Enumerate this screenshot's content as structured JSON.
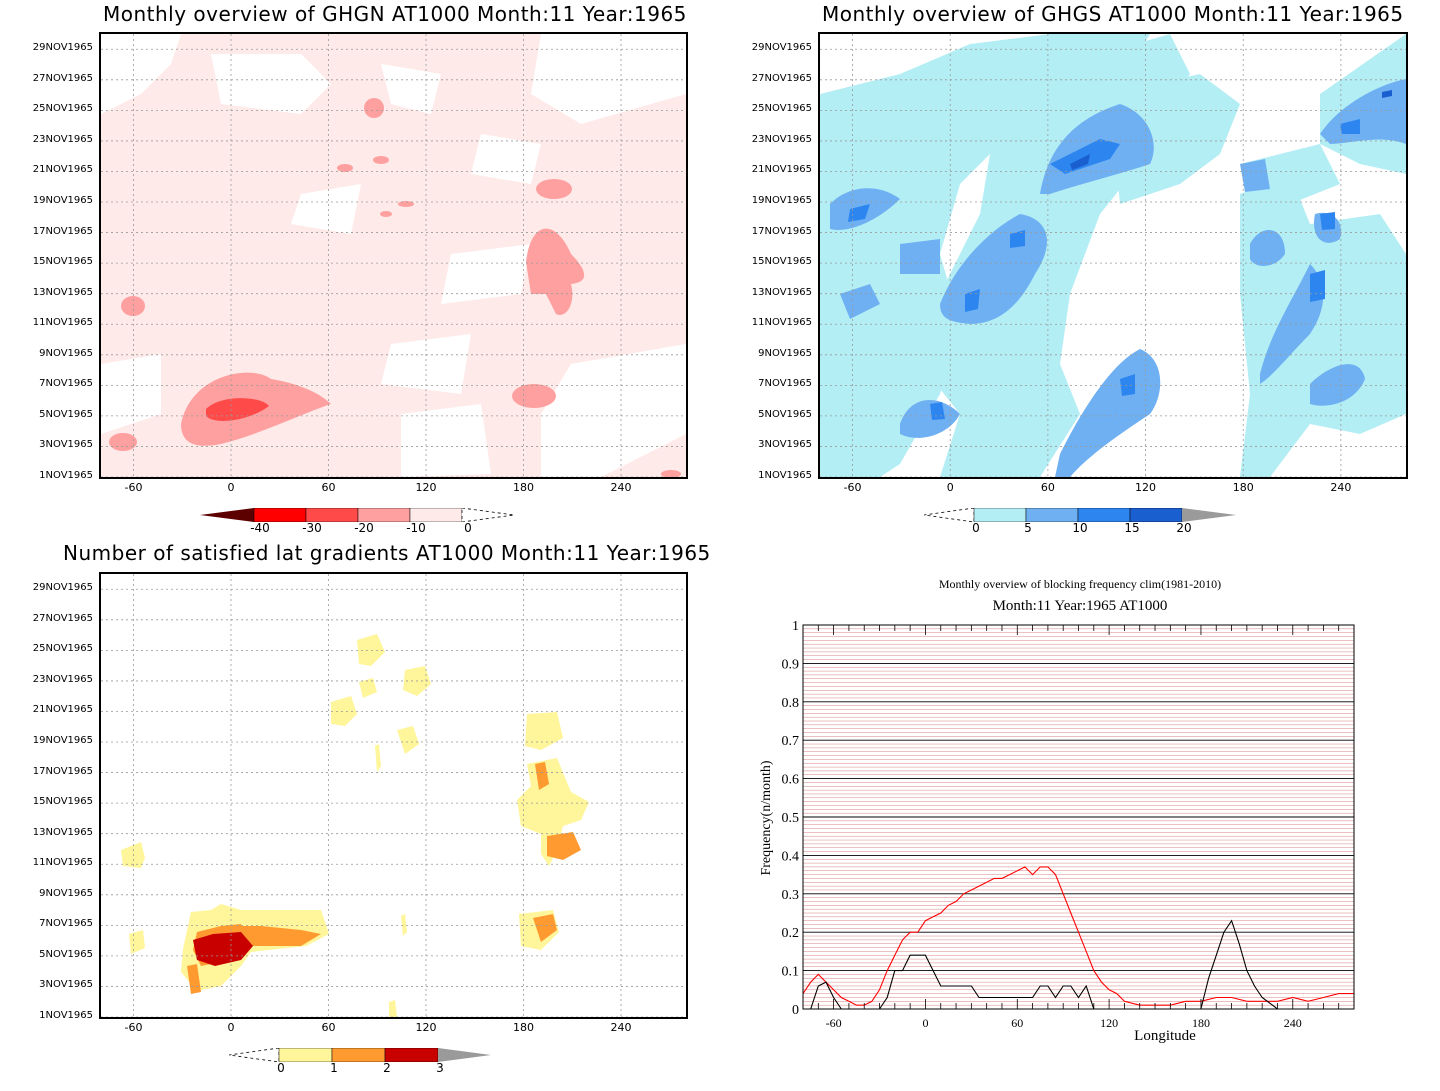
{
  "chart_data": [
    {
      "type": "heatmap",
      "title": "Monthly overview of GHGN AT1000 Month:11 Year:1965",
      "xticks": [
        "-60",
        "0",
        "60",
        "120",
        "180",
        "240"
      ],
      "xtick_values": [
        -60,
        0,
        60,
        120,
        180,
        240
      ],
      "xlim": [
        -80,
        280
      ],
      "yticks": [
        "29NOV1965",
        "27NOV1965",
        "25NOV1965",
        "23NOV1965",
        "21NOV1965",
        "19NOV1965",
        "17NOV1965",
        "15NOV1965",
        "13NOV1965",
        "11NOV1965",
        "9NOV1965",
        "7NOV1965",
        "5NOV1965",
        "3NOV1965",
        "1NOV1965"
      ],
      "colorbar": {
        "labels": [
          "-40",
          "-30",
          "-20",
          "-10",
          "0"
        ],
        "colors": [
          "#5c0000",
          "#ff0000",
          "#ff4a4a",
          "#ffa0a0",
          "#ffeaea"
        ]
      }
    },
    {
      "type": "heatmap",
      "title": "Monthly overview of GHGS AT1000 Month:11 Year:1965",
      "xticks": [
        "-60",
        "0",
        "60",
        "120",
        "180",
        "240"
      ],
      "xtick_values": [
        -60,
        0,
        60,
        120,
        180,
        240
      ],
      "xlim": [
        -80,
        280
      ],
      "yticks": [
        "29NOV1965",
        "27NOV1965",
        "25NOV1965",
        "23NOV1965",
        "21NOV1965",
        "19NOV1965",
        "17NOV1965",
        "15NOV1965",
        "13NOV1965",
        "11NOV1965",
        "9NOV1965",
        "7NOV1965",
        "5NOV1965",
        "3NOV1965",
        "1NOV1965"
      ],
      "colorbar": {
        "labels": [
          "0",
          "5",
          "10",
          "15",
          "20"
        ],
        "colors": [
          "#b4eef5",
          "#6fb0f2",
          "#2d86f0",
          "#1a5fd0",
          "#9a9a9a"
        ]
      }
    },
    {
      "type": "heatmap",
      "title": "Number of satisfied lat gradients AT1000 Month:11 Year:1965",
      "xticks": [
        "-60",
        "0",
        "60",
        "120",
        "180",
        "240"
      ],
      "xtick_values": [
        -60,
        0,
        60,
        120,
        180,
        240
      ],
      "xlim": [
        -80,
        280
      ],
      "yticks": [
        "29NOV1965",
        "27NOV1965",
        "25NOV1965",
        "23NOV1965",
        "21NOV1965",
        "19NOV1965",
        "17NOV1965",
        "15NOV1965",
        "13NOV1965",
        "11NOV1965",
        "9NOV1965",
        "7NOV1965",
        "5NOV1965",
        "3NOV1965",
        "1NOV1965"
      ],
      "colorbar": {
        "labels": [
          "0",
          "1",
          "2",
          "3"
        ],
        "colors": [
          "#fff59a",
          "#ff9a30",
          "#c80000",
          "#9a9a9a"
        ]
      }
    },
    {
      "type": "line",
      "title": "Monthly overview of blocking frequency clim(1981-2010)",
      "subtitle": "Month:11 Year:1965  AT1000",
      "xlabel": "Longitude",
      "ylabel": "Frequency(n/month)",
      "xlim": [
        -80,
        280
      ],
      "ylim": [
        0,
        1
      ],
      "xticks": [
        "-60",
        "0",
        "60",
        "120",
        "180",
        "240"
      ],
      "xtick_values": [
        -60,
        0,
        60,
        120,
        180,
        240
      ],
      "yticks": [
        "0",
        "0.1",
        "0.2",
        "0.3",
        "0.4",
        "0.5",
        "0.6",
        "0.7",
        "0.8",
        "0.9",
        "1"
      ],
      "ytick_values": [
        0,
        0.1,
        0.2,
        0.3,
        0.4,
        0.5,
        0.6,
        0.7,
        0.8,
        0.9,
        1
      ],
      "series": [
        {
          "color": "#ff0000",
          "x": [
            -80,
            -75,
            -70,
            -65,
            -60,
            -55,
            -50,
            -45,
            -40,
            -35,
            -30,
            -25,
            -20,
            -15,
            -10,
            -5,
            0,
            5,
            10,
            15,
            20,
            25,
            30,
            35,
            40,
            45,
            50,
            55,
            60,
            65,
            70,
            75,
            80,
            85,
            90,
            95,
            100,
            105,
            110,
            115,
            120,
            125,
            130,
            140,
            150,
            160,
            170,
            180,
            190,
            200,
            210,
            220,
            230,
            240,
            250,
            260,
            270,
            280
          ],
          "values": [
            0.04,
            0.07,
            0.09,
            0.07,
            0.05,
            0.03,
            0.02,
            0.01,
            0.01,
            0.02,
            0.05,
            0.1,
            0.14,
            0.18,
            0.2,
            0.2,
            0.23,
            0.24,
            0.25,
            0.27,
            0.28,
            0.3,
            0.31,
            0.32,
            0.33,
            0.34,
            0.34,
            0.35,
            0.36,
            0.37,
            0.35,
            0.37,
            0.37,
            0.35,
            0.3,
            0.25,
            0.2,
            0.15,
            0.1,
            0.07,
            0.05,
            0.04,
            0.02,
            0.01,
            0.01,
            0.01,
            0.02,
            0.02,
            0.03,
            0.03,
            0.02,
            0.02,
            0.02,
            0.03,
            0.02,
            0.03,
            0.04,
            0.04
          ]
        },
        {
          "color": "#000000",
          "x": [
            -80,
            -75,
            -70,
            -65,
            -60,
            -55,
            -50,
            -45,
            -40,
            -35,
            -30,
            -25,
            -20,
            -15,
            -10,
            -5,
            0,
            5,
            10,
            15,
            20,
            25,
            30,
            35,
            40,
            45,
            50,
            55,
            60,
            65,
            70,
            75,
            80,
            85,
            90,
            95,
            100,
            105,
            110,
            115,
            120,
            130,
            140,
            150,
            160,
            170,
            180,
            185,
            190,
            195,
            200,
            205,
            210,
            215,
            220,
            230,
            240,
            250,
            260,
            270,
            280
          ],
          "values": [
            0,
            0,
            0.06,
            0.07,
            0.03,
            0,
            0,
            0,
            0,
            0,
            0,
            0.03,
            0.1,
            0.1,
            0.14,
            0.14,
            0.14,
            0.1,
            0.06,
            0.06,
            0.06,
            0.06,
            0.06,
            0.03,
            0.03,
            0.03,
            0.03,
            0.03,
            0.03,
            0.03,
            0.03,
            0.06,
            0.06,
            0.03,
            0.06,
            0.06,
            0.03,
            0.06,
            0,
            0,
            0,
            0,
            0,
            0,
            0,
            0,
            0,
            0.08,
            0.14,
            0.2,
            0.23,
            0.17,
            0.1,
            0.06,
            0.03,
            0,
            0,
            0,
            0,
            0,
            0
          ]
        }
      ]
    }
  ]
}
